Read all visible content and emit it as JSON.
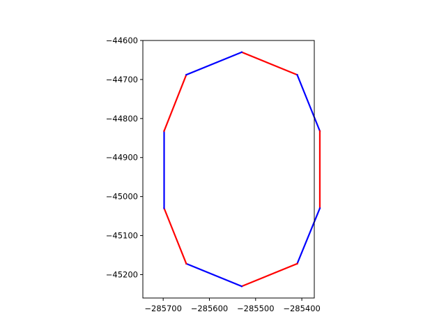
{
  "chart_data": {
    "type": "line",
    "title": "",
    "xlabel": "",
    "ylabel": "",
    "xlim": [
      -285744,
      -285373
    ],
    "ylim": [
      -45260,
      -44600
    ],
    "grid": false,
    "legend": "none",
    "colors": {
      "red": "#ff0000",
      "blue": "#0000ff",
      "axes": "#000000"
    },
    "x_ticks": [
      {
        "value": -285700,
        "label": "−285700"
      },
      {
        "value": -285600,
        "label": "−285600"
      },
      {
        "value": -285500,
        "label": "−285500"
      },
      {
        "value": -285400,
        "label": "−285400"
      }
    ],
    "y_ticks": [
      {
        "value": -44600,
        "label": "−44600"
      },
      {
        "value": -44700,
        "label": "−44700"
      },
      {
        "value": -44800,
        "label": "−44800"
      },
      {
        "value": -44900,
        "label": "−44900"
      },
      {
        "value": -45000,
        "label": "−45000"
      },
      {
        "value": -45100,
        "label": "−45100"
      },
      {
        "value": -45200,
        "label": "−45200"
      }
    ],
    "series": [
      {
        "color": "red",
        "x": [
          -285530,
          -285410
        ],
        "y": [
          -44630,
          -44688
        ]
      },
      {
        "color": "blue",
        "x": [
          -285410,
          -285361
        ],
        "y": [
          -44688,
          -44832
        ]
      },
      {
        "color": "red",
        "x": [
          -285361,
          -285361
        ],
        "y": [
          -44832,
          -45030
        ]
      },
      {
        "color": "blue",
        "x": [
          -285361,
          -285410
        ],
        "y": [
          -45030,
          -45172
        ]
      },
      {
        "color": "red",
        "x": [
          -285410,
          -285530
        ],
        "y": [
          -45172,
          -45230
        ]
      },
      {
        "color": "blue",
        "x": [
          -285530,
          -285650
        ],
        "y": [
          -45230,
          -45172
        ]
      },
      {
        "color": "red",
        "x": [
          -285650,
          -285698
        ],
        "y": [
          -45172,
          -45030
        ]
      },
      {
        "color": "blue",
        "x": [
          -285698,
          -285698
        ],
        "y": [
          -45030,
          -44832
        ]
      },
      {
        "color": "red",
        "x": [
          -285698,
          -285650
        ],
        "y": [
          -44832,
          -44688
        ]
      },
      {
        "color": "blue",
        "x": [
          -285650,
          -285530
        ],
        "y": [
          -44688,
          -44630
        ]
      }
    ]
  }
}
